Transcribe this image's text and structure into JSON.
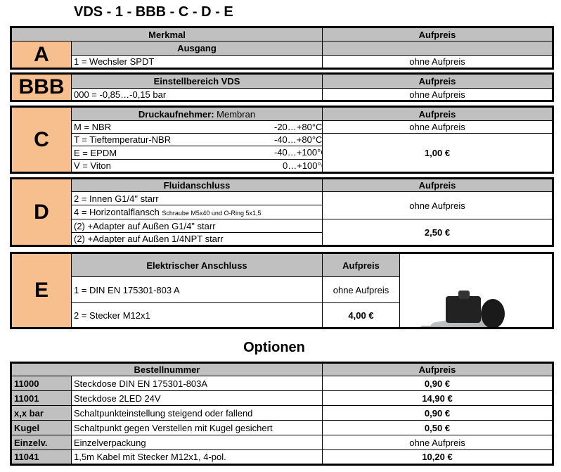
{
  "title": "VDS - 1 - BBB - C - D - E",
  "merkmal": "Merkmal",
  "aufpreis": "Aufpreis",
  "A": {
    "letter": "A",
    "header": "Ausgang",
    "rows": [
      {
        "text": "1 = Wechsler SPDT",
        "price": "ohne Aufpreis"
      }
    ]
  },
  "BBB": {
    "letter": "BBB",
    "header": "Einstellbereich VDS",
    "price_header": "Aufpreis",
    "rows": [
      {
        "text": "000  = -0,85…-0,15 bar",
        "price": "ohne Aufpreis"
      }
    ]
  },
  "C": {
    "letter": "C",
    "header_bold": "Druckaufnehmer:",
    "header_normal": " Membran",
    "price_header": "Aufpreis",
    "rows": [
      {
        "text": "M = NBR",
        "temp": "-20…+80°C"
      },
      {
        "text": "T = Tieftemperatur-NBR",
        "temp": "-40…+80°C"
      },
      {
        "text": "E = EPDM",
        "temp": "-40…+100°C"
      },
      {
        "text": "V = Viton",
        "temp": "0…+100°C"
      }
    ],
    "prices": [
      "ohne Aufpreis",
      "1,00 €"
    ]
  },
  "D": {
    "letter": "D",
    "header": "Fluidanschluss",
    "price_header": "Aufpreis",
    "rows": [
      {
        "text": "2 = Innen G1/4\" starr"
      },
      {
        "text": "4 = Horizontalflansch",
        "note": "Schraube M5x40 und O-Ring 5x1,5"
      },
      {
        "text": "(2) +Adapter auf Außen G1/4\" starr"
      },
      {
        "text": "(2) +Adapter auf Außen 1/4NPT starr"
      }
    ],
    "prices": [
      "ohne Aufpreis",
      "2,50 €"
    ]
  },
  "E": {
    "letter": "E",
    "header": "Elektrischer Anschluss",
    "price_header": "Aufpreis",
    "rows": [
      {
        "text": "1 = DIN EN 175301-803 A",
        "price": "ohne Aufpreis"
      },
      {
        "text": "2 = Stecker M12x1",
        "price": "4,00 €"
      }
    ]
  },
  "options": {
    "title": "Optionen",
    "header": "Bestellnummer",
    "price_header": "Aufpreis",
    "rows": [
      {
        "code": "11000",
        "text": "Steckdose DIN EN 175301-803A",
        "price": "0,90 €"
      },
      {
        "code": "11001",
        "text": "Steckdose 2LED 24V",
        "price": "14,90 €"
      },
      {
        "code": "x,x bar",
        "text": "Schaltpunkteinstellung steigend oder fallend",
        "price": "0,90 €"
      },
      {
        "code": "Kugel",
        "text": "Schaltpunkt gegen Verstellen mit Kugel gesichert",
        "price": "0,50 €"
      },
      {
        "code": "Einzelv.",
        "text": "Einzelverpackung",
        "price": "ohne Aufpreis"
      },
      {
        "code": "11041",
        "text": "1,5m Kabel mit Stecker M12x1, 4-pol.",
        "price": "10,20 €"
      }
    ]
  }
}
